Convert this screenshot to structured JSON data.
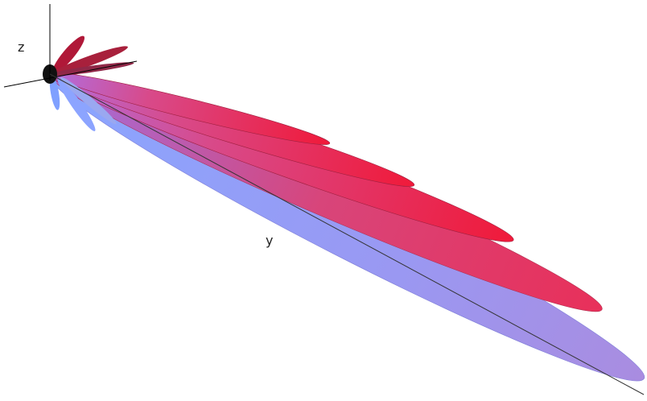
{
  "axes": {
    "z_label": "z",
    "y_label": "y"
  }
}
